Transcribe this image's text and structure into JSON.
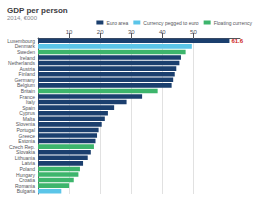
{
  "chart_data": {
    "type": "bar",
    "orientation": "horizontal",
    "stacked": true,
    "title": "GDP per person",
    "subtitle": "2014, €000",
    "categories": [
      "Luxembourg",
      "Denmark",
      "Sweden",
      "Ireland",
      "Netherlands",
      "Austria",
      "Finland",
      "Germany",
      "Belgium",
      "Britain",
      "France",
      "Italy",
      "Spain",
      "Cyprus",
      "Malta",
      "Slovenia",
      "Portugal",
      "Greece",
      "Estonia",
      "Czech Rep.",
      "Slovakia",
      "Lithuania",
      "Latvia",
      "Poland",
      "Hungary",
      "Croatia",
      "Romania",
      "Bulgaria"
    ],
    "series": [
      {
        "name": "Euro area",
        "color": "#1b3f6e",
        "values": [
          61.6,
          null,
          null,
          46.0,
          45.5,
          44.5,
          44.0,
          43.5,
          43.0,
          null,
          33.5,
          28.5,
          24.5,
          22.5,
          21.5,
          20.5,
          19.5,
          19.0,
          18.5,
          null,
          17.0,
          16.0,
          14.5,
          null,
          null,
          null,
          null,
          null
        ]
      },
      {
        "name": "Currency pegged to euro",
        "color": "#5bc5e8",
        "values": [
          null,
          49.5,
          null,
          null,
          null,
          null,
          null,
          null,
          null,
          null,
          null,
          null,
          null,
          null,
          null,
          null,
          null,
          null,
          null,
          null,
          null,
          null,
          null,
          null,
          null,
          null,
          null,
          7.5
        ]
      },
      {
        "name": "Floating currency",
        "color": "#3db56c",
        "values": [
          null,
          null,
          47.5,
          null,
          null,
          null,
          null,
          null,
          null,
          38.5,
          null,
          null,
          null,
          null,
          null,
          null,
          null,
          null,
          null,
          18.0,
          null,
          null,
          null,
          13.5,
          13.0,
          11.5,
          10.0,
          null
        ]
      }
    ],
    "xlim": [
      0,
      65
    ],
    "xticks": [
      10,
      20,
      30,
      40,
      50
    ],
    "grid": true,
    "legend": "upper right",
    "annotations": [
      {
        "text": "61.6",
        "category": "Luxembourg",
        "x": 61.6,
        "color": "#cc2222"
      }
    ]
  }
}
